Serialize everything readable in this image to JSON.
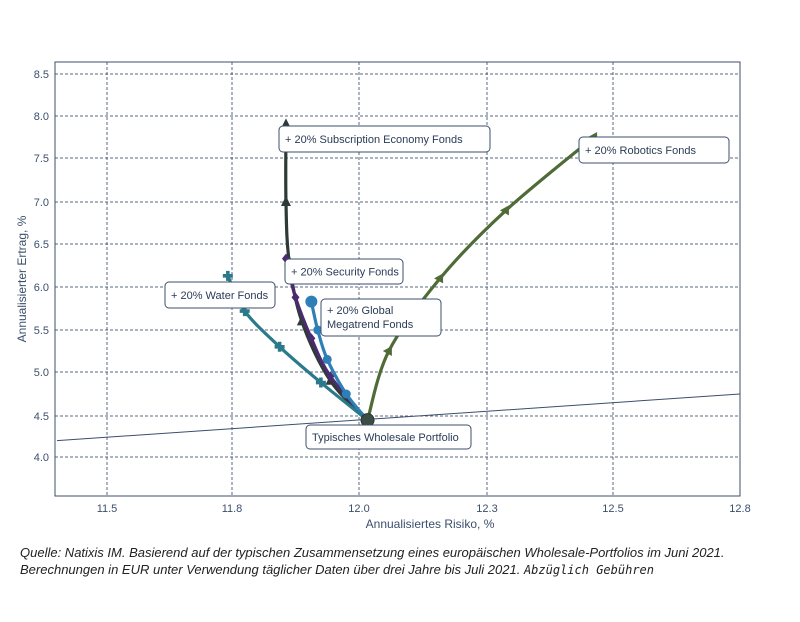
{
  "chart_data": {
    "type": "line",
    "title": "",
    "xlabel": "Annualisiertes Risiko, %",
    "ylabel": "Annualisierter Ertrag, %",
    "xlim": [
      11.38,
      12.8
    ],
    "ylim": [
      3.55,
      8.6
    ],
    "x_ticks": [
      11.5,
      11.8,
      12.0,
      12.3,
      12.5,
      12.8
    ],
    "x_tick_labels": [
      "11.5",
      "11.8",
      "12.0",
      "12.3",
      "12.5",
      "12.8"
    ],
    "y_ticks": [
      4.0,
      4.5,
      5.0,
      5.5,
      6.0,
      6.5,
      7.0,
      7.5,
      8.0,
      8.5
    ],
    "y_tick_labels": [
      "4.0",
      "4.5",
      "5.0",
      "5.5",
      "6.0",
      "6.5",
      "7.0",
      "7.5",
      "8.0",
      "8.5"
    ],
    "grid": true,
    "base_point": {
      "x": 12.02,
      "y": 4.45,
      "label": "Typisches Wholesale Portfolio"
    },
    "efficient_frontier_line": {
      "x": [
        11.38,
        12.8
      ],
      "y": [
        4.2,
        4.75
      ]
    },
    "series": [
      {
        "name": "+ 20% Subscription Economy Fonds",
        "color": "#2f3a36",
        "marker": "triangle",
        "x": [
          12.02,
          11.955,
          11.91,
          11.89,
          11.885,
          11.885
        ],
        "y": [
          4.45,
          4.9,
          5.6,
          6.3,
          7.0,
          7.9
        ]
      },
      {
        "name": "+ 20% Robotics Fonds",
        "color": "#4f6b37",
        "marker": "tri-left",
        "x": [
          12.02,
          12.07,
          12.19,
          12.33,
          12.47
        ],
        "y": [
          4.45,
          5.25,
          6.1,
          6.9,
          7.75
        ]
      },
      {
        "name": "+ 20% Security Fonds",
        "color": "#4a2b6f",
        "marker": "diamond",
        "x": [
          12.02,
          11.955,
          11.925,
          11.9,
          11.885
        ],
        "y": [
          4.45,
          4.95,
          5.4,
          5.88,
          6.33
        ]
      },
      {
        "name": "+ 20% Global Megatrend Fonds",
        "color": "#2e7fb8",
        "marker": "circle",
        "x": [
          12.02,
          11.98,
          11.95,
          11.935,
          11.925
        ],
        "y": [
          4.45,
          4.75,
          5.15,
          5.5,
          5.83
        ]
      },
      {
        "name": "+ 20% Water Fonds",
        "color": "#2a7a8c",
        "marker": "plus",
        "x": [
          12.02,
          11.94,
          11.875,
          11.82,
          11.79
        ],
        "y": [
          4.45,
          4.88,
          5.3,
          5.72,
          6.13
        ]
      }
    ],
    "annotations": [
      {
        "text": "+ 20% Subscription Economy Fonds"
      },
      {
        "text": "+ 20% Robotics Fonds"
      },
      {
        "text": "+ 20% Security Fonds"
      },
      {
        "text": "+ 20% Water Fonds"
      },
      {
        "text": "+ 20% Global Megatrend Fonds"
      },
      {
        "text": "Typisches Wholesale Portfolio"
      }
    ]
  },
  "source": {
    "line1": "Quelle: Natixis IM. Basierend auf der typischen Zusammensetzung eines europäischen Wholesale-Portfolios im Juni 2021.",
    "line2": "Berechnungen in EUR unter Verwendung täglicher Daten über drei Jahre bis Juli 2021.",
    "line2_extra": "Abzüglich Gebühren"
  }
}
